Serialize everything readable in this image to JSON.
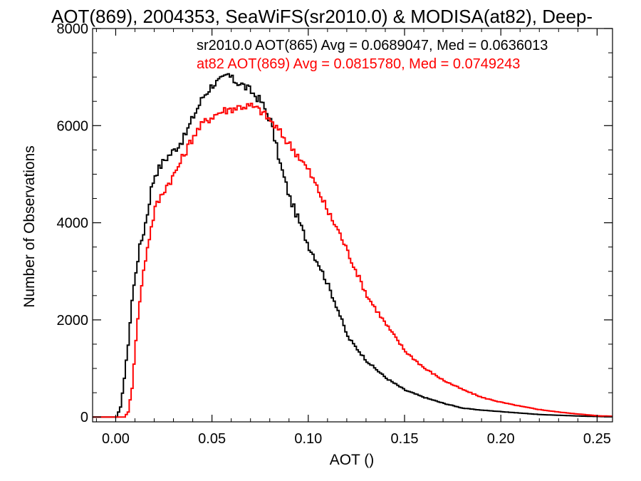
{
  "chart_data": {
    "type": "line",
    "title": "AOT(869), 2004353, SeaWiFS(sr2010.0) & MODISA(at82), Deep-",
    "xlabel": "AOT ()",
    "ylabel": "Number of Observations",
    "xlim": [
      -0.012,
      0.258
    ],
    "ylim": [
      -100,
      8000
    ],
    "xticks": [
      0.0,
      0.05,
      0.1,
      0.15,
      0.2,
      0.25
    ],
    "xtick_labels": [
      "0.00",
      "0.05",
      "0.10",
      "0.15",
      "0.20",
      "0.25"
    ],
    "yticks": [
      0,
      2000,
      4000,
      6000,
      8000
    ],
    "ytick_labels": [
      "0",
      "2000",
      "4000",
      "6000",
      "8000"
    ],
    "grid": false,
    "step": true,
    "annotations": [
      {
        "text": "sr2010.0 AOT(865) Avg = 0.0689047, Med = 0.0636013",
        "color": "#000000"
      },
      {
        "text": "at82 AOT(869) Avg = 0.0815780, Med = 0.0749243",
        "color": "#ff0000"
      }
    ],
    "series": [
      {
        "color": "#000000",
        "x": [
          -0.01,
          0.0,
          0.002,
          0.004,
          0.006,
          0.008,
          0.01,
          0.012,
          0.014,
          0.016,
          0.018,
          0.02,
          0.025,
          0.03,
          0.035,
          0.04,
          0.045,
          0.05,
          0.055,
          0.058,
          0.06,
          0.065,
          0.07,
          0.075,
          0.08,
          0.085,
          0.09,
          0.095,
          0.1,
          0.105,
          0.11,
          0.115,
          0.12,
          0.13,
          0.14,
          0.15,
          0.16,
          0.17,
          0.18,
          0.19,
          0.2,
          0.21,
          0.22,
          0.23,
          0.24,
          0.25,
          0.258
        ],
        "y": [
          0,
          0,
          200,
          800,
          1500,
          2400,
          3000,
          3500,
          3800,
          4200,
          4700,
          5000,
          5300,
          5500,
          5750,
          6200,
          6600,
          6850,
          6950,
          7050,
          6950,
          6850,
          6700,
          6500,
          6100,
          5200,
          4500,
          4000,
          3500,
          3150,
          2700,
          2200,
          1650,
          1150,
          800,
          550,
          400,
          280,
          180,
          140,
          110,
          80,
          50,
          35,
          20,
          10,
          5
        ]
      },
      {
        "color": "#ff0000",
        "x": [
          -0.01,
          0.004,
          0.006,
          0.008,
          0.01,
          0.012,
          0.014,
          0.016,
          0.018,
          0.02,
          0.025,
          0.03,
          0.035,
          0.04,
          0.045,
          0.05,
          0.055,
          0.06,
          0.065,
          0.07,
          0.075,
          0.08,
          0.085,
          0.09,
          0.095,
          0.1,
          0.105,
          0.11,
          0.115,
          0.12,
          0.125,
          0.13,
          0.14,
          0.15,
          0.16,
          0.17,
          0.18,
          0.19,
          0.2,
          0.21,
          0.22,
          0.23,
          0.24,
          0.25,
          0.258
        ],
        "y": [
          0,
          0,
          100,
          600,
          1600,
          2400,
          3000,
          3500,
          3900,
          4300,
          4700,
          5000,
          5400,
          5800,
          6050,
          6200,
          6300,
          6350,
          6400,
          6400,
          6300,
          6100,
          5850,
          5600,
          5350,
          5050,
          4650,
          4200,
          3850,
          3400,
          2950,
          2500,
          1900,
          1350,
          1000,
          750,
          560,
          400,
          300,
          220,
          150,
          100,
          60,
          25,
          15
        ]
      }
    ]
  }
}
